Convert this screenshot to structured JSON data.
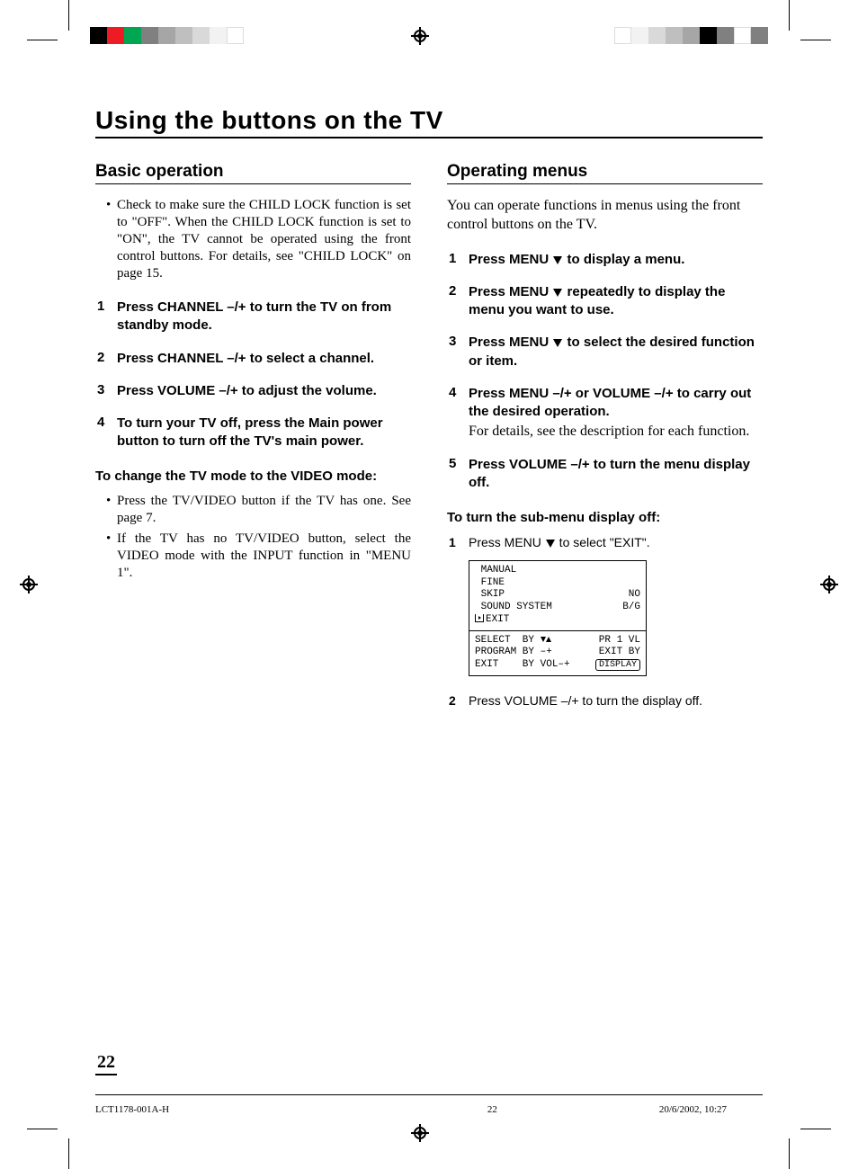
{
  "title": "Using the buttons on the TV",
  "left": {
    "heading": "Basic operation",
    "note": "Check to make sure the CHILD LOCK function is set to \"OFF\". When the CHILD LOCK function is set to \"ON\", the TV cannot be operated using the front control buttons. For details, see \"CHILD LOCK\" on page 15.",
    "steps": [
      "Press CHANNEL –/+ to turn the TV on from standby mode.",
      "Press CHANNEL –/+ to select a channel.",
      "Press VOLUME –/+ to adjust the volume.",
      "To turn your TV off, press the Main power button to turn off the TV's main power."
    ],
    "subhead": "To change the TV mode to the VIDEO mode:",
    "subbullets": [
      "Press the TV/VIDEO button if the TV has one. See page 7.",
      "If the TV has no TV/VIDEO button, select the VIDEO mode with the INPUT function in \"MENU 1\"."
    ]
  },
  "right": {
    "heading": "Operating menus",
    "intro": "You can operate functions in menus using the front control buttons on the TV.",
    "steps": [
      {
        "bold": "Press MENU ▼ to display a menu."
      },
      {
        "bold": "Press MENU ▼ repeatedly to display the menu you want to use."
      },
      {
        "bold": "Press MENU ▼ to select the desired function or item."
      },
      {
        "bold": "Press MENU –/+ or VOLUME –/+ to carry out the desired operation.",
        "body": "For details, see the description for each function."
      },
      {
        "bold": "Press VOLUME –/+ to turn the menu display off."
      }
    ],
    "subhead": "To turn the sub-menu display off:",
    "sub1": "Press MENU ▼ to select \"EXIT\".",
    "menu": {
      "rows1": [
        {
          "l": " MANUAL",
          "r": ""
        },
        {
          "l": " FINE",
          "r": ""
        },
        {
          "l": " SKIP",
          "r": "NO"
        },
        {
          "l": " SOUND SYSTEM",
          "r": "B/G"
        },
        {
          "l": "EXIT",
          "r": "",
          "exit": true
        }
      ],
      "rows2": [
        {
          "l": "SELECT  BY ",
          "ud": true,
          "r": "PR 1 VL"
        },
        {
          "l": "PROGRAM BY –+",
          "r": "EXIT BY"
        },
        {
          "l": "EXIT    BY VOL–+",
          "r": "DISPLAY",
          "tag": true
        }
      ]
    },
    "sub2": "Press VOLUME –/+ to turn the display off."
  },
  "page_number": "22",
  "footer": {
    "doc": "LCT1178-001A-H",
    "page": "22",
    "date": "20/6/2002, 10:27"
  },
  "colorbars": {
    "left": [
      "#000000",
      "#ed1c24",
      "#00a651",
      "#808080",
      "#a6a6a6",
      "#bfbfbf",
      "#d9d9d9",
      "#f2f2f2",
      "#ffffff"
    ],
    "right": [
      "#ffffff",
      "#f2f2f2",
      "#d9d9d9",
      "#bfbfbf",
      "#a6a6a6",
      "#000000",
      "#808080",
      "#ffffff",
      "#808080"
    ]
  }
}
